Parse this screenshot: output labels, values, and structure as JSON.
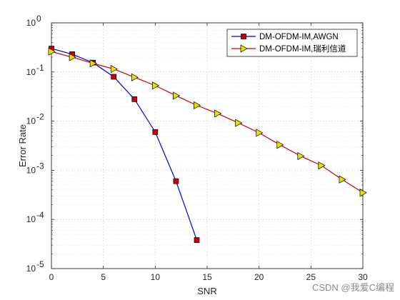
{
  "chart_data": {
    "type": "line",
    "xlabel": "SNR",
    "ylabel": "Error Rate",
    "xlim": [
      0,
      30
    ],
    "ylim": [
      1e-05,
      1
    ],
    "yscale": "log",
    "grid": true,
    "legend_position": "top-right",
    "x_ticks": [
      0,
      5,
      10,
      15,
      20,
      25,
      30
    ],
    "y_tick_exponents": [
      -5,
      -4,
      -3,
      -2,
      -1,
      0
    ],
    "series": [
      {
        "name": "DM-OFDM-IM,AWGN",
        "color": "#0000cc",
        "marker": "square",
        "marker_fill": "#cc0000",
        "x": [
          0,
          2,
          4,
          6,
          8,
          10,
          12,
          14
        ],
        "y": [
          0.3,
          0.23,
          0.155,
          0.08,
          0.028,
          0.006,
          0.0006,
          3.8e-05
        ]
      },
      {
        "name": "DM-OFDM-IM,瑞利信道",
        "color": "#cc0000",
        "marker": "triangle-right",
        "marker_fill": "#e8e000",
        "x": [
          0,
          2,
          4,
          6,
          8,
          10,
          12,
          14,
          16,
          18,
          20,
          22,
          24,
          26,
          28,
          30
        ],
        "y": [
          0.26,
          0.2,
          0.15,
          0.115,
          0.078,
          0.053,
          0.033,
          0.021,
          0.0143,
          0.0092,
          0.0058,
          0.0033,
          0.00195,
          0.00125,
          0.00065,
          0.00035
        ]
      }
    ]
  },
  "watermark": "CSDN @我爱C编程"
}
